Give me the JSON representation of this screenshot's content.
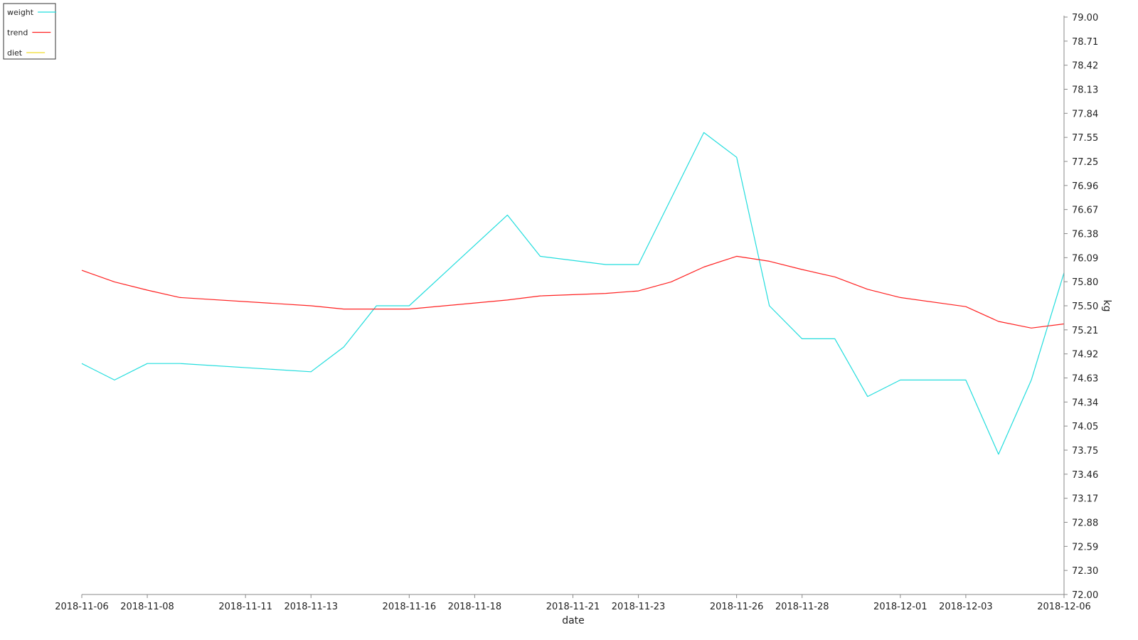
{
  "chart_data": {
    "type": "line",
    "xlabel": "date",
    "ylabel": "kg",
    "ylim": [
      72.0,
      79.0
    ],
    "xlim": [
      "2018-11-06",
      "2018-12-06"
    ],
    "grid": false,
    "legend_position": "top-left",
    "x_tick_labels": [
      "2018-11-06",
      "2018-11-08",
      "2018-11-11",
      "2018-11-13",
      "2018-11-16",
      "2018-11-18",
      "2018-11-21",
      "2018-11-23",
      "2018-11-26",
      "2018-11-28",
      "2018-12-01",
      "2018-12-03",
      "2018-12-06"
    ],
    "y_tick_labels": [
      "79.00",
      "78.71",
      "78.42",
      "78.13",
      "77.84",
      "77.55",
      "77.25",
      "76.96",
      "76.67",
      "76.38",
      "76.09",
      "75.80",
      "75.50",
      "75.21",
      "74.92",
      "74.63",
      "74.34",
      "74.05",
      "73.75",
      "73.46",
      "73.17",
      "72.88",
      "72.59",
      "72.30",
      "72.00"
    ],
    "series": [
      {
        "name": "weight",
        "color": "#22dddd",
        "points": [
          [
            "2018-11-06",
            74.8
          ],
          [
            "2018-11-07",
            74.6
          ],
          [
            "2018-11-08",
            74.8
          ],
          [
            "2018-11-09",
            74.8
          ],
          [
            "2018-11-13",
            74.7
          ],
          [
            "2018-11-14",
            75.0
          ],
          [
            "2018-11-15",
            75.5
          ],
          [
            "2018-11-16",
            75.5
          ],
          [
            "2018-11-19",
            76.6
          ],
          [
            "2018-11-20",
            76.1
          ],
          [
            "2018-11-22",
            76.0
          ],
          [
            "2018-11-23",
            76.0
          ],
          [
            "2018-11-25",
            77.6
          ],
          [
            "2018-11-26",
            77.3
          ],
          [
            "2018-11-27",
            75.5
          ],
          [
            "2018-11-28",
            75.1
          ],
          [
            "2018-11-29",
            75.1
          ],
          [
            "2018-11-30",
            74.4
          ],
          [
            "2018-12-01",
            74.6
          ],
          [
            "2018-12-03",
            74.6
          ],
          [
            "2018-12-04",
            73.7
          ],
          [
            "2018-12-05",
            74.6
          ],
          [
            "2018-12-06",
            75.9
          ]
        ]
      },
      {
        "name": "trend",
        "color": "#ff2020",
        "points": [
          [
            "2018-11-06",
            75.93
          ],
          [
            "2018-11-07",
            75.79
          ],
          [
            "2018-11-08",
            75.69
          ],
          [
            "2018-11-09",
            75.6
          ],
          [
            "2018-11-13",
            75.5
          ],
          [
            "2018-11-14",
            75.46
          ],
          [
            "2018-11-15",
            75.46
          ],
          [
            "2018-11-16",
            75.46
          ],
          [
            "2018-11-19",
            75.57
          ],
          [
            "2018-11-20",
            75.62
          ],
          [
            "2018-11-22",
            75.65
          ],
          [
            "2018-11-23",
            75.68
          ],
          [
            "2018-11-24",
            75.79
          ],
          [
            "2018-11-25",
            75.97
          ],
          [
            "2018-11-26",
            76.1
          ],
          [
            "2018-11-27",
            76.04
          ],
          [
            "2018-11-28",
            75.94
          ],
          [
            "2018-11-29",
            75.85
          ],
          [
            "2018-11-30",
            75.7
          ],
          [
            "2018-12-01",
            75.6
          ],
          [
            "2018-12-03",
            75.49
          ],
          [
            "2018-12-04",
            75.31
          ],
          [
            "2018-12-05",
            75.23
          ],
          [
            "2018-12-06",
            75.28
          ]
        ]
      },
      {
        "name": "diet",
        "color": "#f0dc28",
        "points": []
      }
    ]
  }
}
